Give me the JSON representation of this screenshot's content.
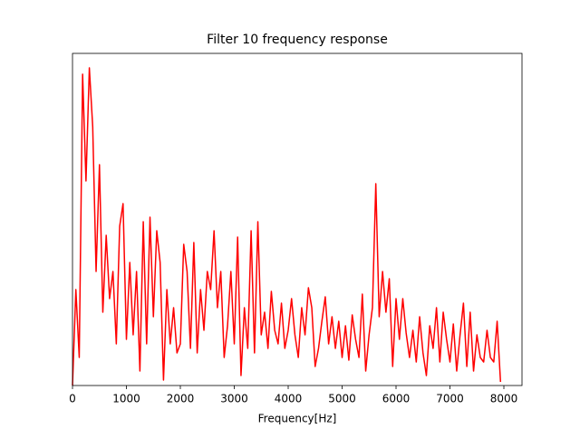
{
  "chart_data": {
    "type": "line",
    "title": "Filter 10 frequency response",
    "x_label": "Frequency[Hz]",
    "x": [
      0,
      62.5,
      125,
      187.5,
      250,
      312.5,
      375,
      437.5,
      500,
      562.5,
      625,
      687.5,
      750,
      812.5,
      875,
      937.5,
      1000,
      1062.5,
      1125,
      1187.5,
      1250,
      1312.5,
      1375,
      1437.5,
      1500,
      1562.5,
      1625,
      1687.5,
      1750,
      1812.5,
      1875,
      1937.5,
      2000,
      2062.5,
      2125,
      2187.5,
      2250,
      2312.5,
      2375,
      2437.5,
      2500,
      2562.5,
      2625,
      2687.5,
      2750,
      2812.5,
      2875,
      2937.5,
      3000,
      3062.5,
      3125,
      3187.5,
      3250,
      3312.5,
      3375,
      3437.5,
      3500,
      3562.5,
      3625,
      3687.5,
      3750,
      3812.5,
      3875,
      3937.5,
      4000,
      4062.5,
      4125,
      4187.5,
      4250,
      4312.5,
      4375,
      4437.5,
      4500,
      4562.5,
      4625,
      4687.5,
      4750,
      4812.5,
      4875,
      4937.5,
      5000,
      5062.5,
      5125,
      5187.5,
      5250,
      5312.5,
      5375,
      5437.5,
      5500,
      5562.5,
      5625,
      5687.5,
      5750,
      5812.5,
      5875,
      5937.5,
      6000,
      6062.5,
      6125,
      6187.5,
      6250,
      6312.5,
      6375,
      6437.5,
      6500,
      6562.5,
      6625,
      6687.5,
      6750,
      6812.5,
      6875,
      6937.5,
      7000,
      7062.5,
      7125,
      7187.5,
      7250,
      7312.5,
      7375,
      7437.5,
      7500,
      7562.5,
      7625,
      7687.5,
      7750,
      7812.5,
      7875,
      7937.5
    ],
    "series": [
      {
        "color": "#ff0000",
        "values": [
          0,
          106,
          31,
          344,
          226,
          351,
          286,
          126,
          244,
          81,
          166,
          96,
          126,
          46,
          176,
          201,
          51,
          136,
          56,
          126,
          16,
          181,
          46,
          186,
          76,
          171,
          136,
          6,
          106,
          46,
          86,
          36,
          46,
          156,
          126,
          41,
          158,
          36,
          106,
          61,
          126,
          106,
          171,
          86,
          126,
          31,
          66,
          126,
          46,
          164,
          11,
          86,
          41,
          171,
          36,
          181,
          56,
          81,
          41,
          104,
          61,
          46,
          91,
          41,
          61,
          96,
          56,
          31,
          86,
          56,
          108,
          86,
          21,
          41,
          71,
          98,
          46,
          76,
          41,
          71,
          31,
          66,
          28,
          78,
          51,
          31,
          101,
          16,
          56,
          86,
          223,
          76,
          126,
          81,
          118,
          21,
          96,
          51,
          96,
          58,
          31,
          61,
          26,
          76,
          36,
          11,
          66,
          41,
          86,
          26,
          81,
          51,
          26,
          68,
          16,
          56,
          91,
          21,
          81,
          16,
          56,
          31,
          26,
          61,
          31,
          26,
          71,
          4
        ]
      }
    ],
    "xlim": [
      0,
      8336
    ],
    "ylim": [
      0,
      367
    ],
    "xticks": [
      0,
      1000,
      2000,
      3000,
      4000,
      5000,
      6000,
      7000,
      8000
    ]
  }
}
